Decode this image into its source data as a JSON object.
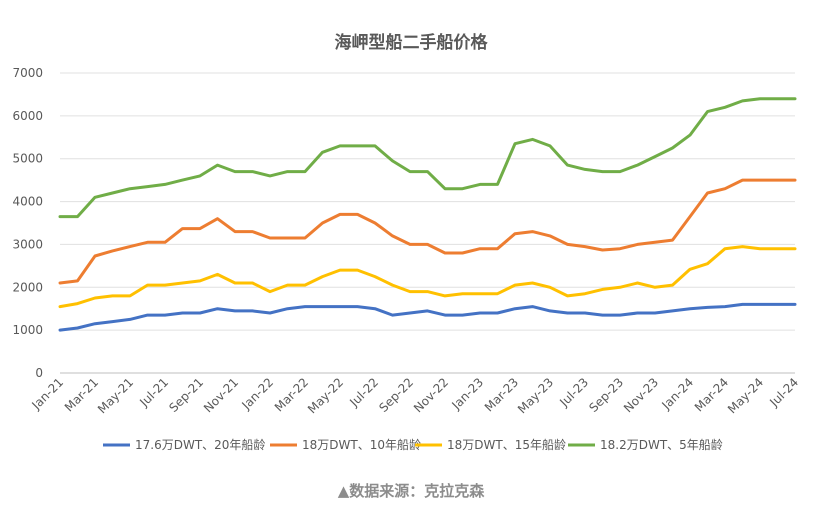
{
  "chart_data": {
    "type": "line",
    "title": "海岬型船二手船价格",
    "xlabel": "",
    "ylabel": "",
    "ylim": [
      0,
      7000
    ],
    "yticks": [
      0,
      1000,
      2000,
      3000,
      4000,
      5000,
      6000,
      7000
    ],
    "ytick_labels": [
      "0",
      "1000",
      "2000",
      "3000",
      "4000",
      "5000",
      "6000",
      "7000"
    ],
    "grid": true,
    "legend": "bottom",
    "x_labels_shown": [
      "Jan-21",
      "Mar-21",
      "May-21",
      "Jul-21",
      "Sep-21",
      "Nov-21",
      "Jan-22",
      "Mar-22",
      "May-22",
      "Jul-22",
      "Sep-22",
      "Nov-22",
      "Jan-23",
      "Mar-23",
      "May-23",
      "Jul-23",
      "Sep-23",
      "Nov-23",
      "Jan-24",
      "Mar-24",
      "May-24",
      "Jul-24"
    ],
    "x": [
      "Jan-21",
      "Feb-21",
      "Mar-21",
      "Apr-21",
      "May-21",
      "Jun-21",
      "Jul-21",
      "Aug-21",
      "Sep-21",
      "Oct-21",
      "Nov-21",
      "Dec-21",
      "Jan-22",
      "Feb-22",
      "Mar-22",
      "Apr-22",
      "May-22",
      "Jun-22",
      "Jul-22",
      "Aug-22",
      "Sep-22",
      "Oct-22",
      "Nov-22",
      "Dec-22",
      "Jan-23",
      "Feb-23",
      "Mar-23",
      "Apr-23",
      "May-23",
      "Jun-23",
      "Jul-23",
      "Aug-23",
      "Sep-23",
      "Oct-23",
      "Nov-23",
      "Dec-23",
      "Jan-24",
      "Feb-24",
      "Mar-24",
      "Apr-24",
      "May-24",
      "Jun-24",
      "Jul-24"
    ],
    "series": [
      {
        "name": "17.6万DWT、20年船龄",
        "color": "#4472C4",
        "values": [
          1000,
          1050,
          1150,
          1200,
          1250,
          1350,
          1350,
          1400,
          1400,
          1500,
          1450,
          1450,
          1400,
          1500,
          1550,
          1550,
          1550,
          1550,
          1500,
          1350,
          1400,
          1450,
          1350,
          1350,
          1400,
          1400,
          1500,
          1550,
          1450,
          1400,
          1400,
          1350,
          1350,
          1400,
          1400,
          1450,
          1500,
          1530,
          1550,
          1600,
          1600,
          1600,
          1600
        ]
      },
      {
        "name": "18万DWT、10年船龄",
        "color": "#ED7D31",
        "values": [
          2100,
          2150,
          2730,
          2850,
          2950,
          3050,
          3050,
          3370,
          3370,
          3600,
          3300,
          3300,
          3150,
          3150,
          3150,
          3500,
          3700,
          3700,
          3500,
          3200,
          3000,
          3000,
          2800,
          2800,
          2900,
          2900,
          3250,
          3300,
          3200,
          3000,
          2950,
          2870,
          2900,
          3000,
          3050,
          3100,
          3650,
          4200,
          4300,
          4500,
          4500,
          4500,
          4500
        ]
      },
      {
        "name": "18万DWT、15年船龄",
        "color": "#FFC000",
        "values": [
          1550,
          1620,
          1750,
          1800,
          1800,
          2050,
          2050,
          2100,
          2150,
          2300,
          2100,
          2100,
          1900,
          2050,
          2050,
          2250,
          2400,
          2400,
          2250,
          2050,
          1900,
          1900,
          1800,
          1850,
          1850,
          1850,
          2050,
          2100,
          2000,
          1800,
          1850,
          1950,
          2000,
          2100,
          2000,
          2050,
          2420,
          2550,
          2900,
          2950,
          2900,
          2900,
          2900
        ]
      },
      {
        "name": "18.2万DWT、5年船龄",
        "color": "#70AD47",
        "values": [
          3650,
          3650,
          4100,
          4200,
          4300,
          4350,
          4400,
          4500,
          4600,
          4850,
          4700,
          4700,
          4600,
          4700,
          4700,
          5150,
          5300,
          5300,
          5300,
          4950,
          4700,
          4700,
          4300,
          4300,
          4400,
          4400,
          5350,
          5450,
          5300,
          4850,
          4750,
          4700,
          4700,
          4850,
          5050,
          5250,
          5550,
          6100,
          6200,
          6350,
          6400,
          6400,
          6400
        ]
      }
    ]
  },
  "source_note": "▲数据来源：克拉克森"
}
